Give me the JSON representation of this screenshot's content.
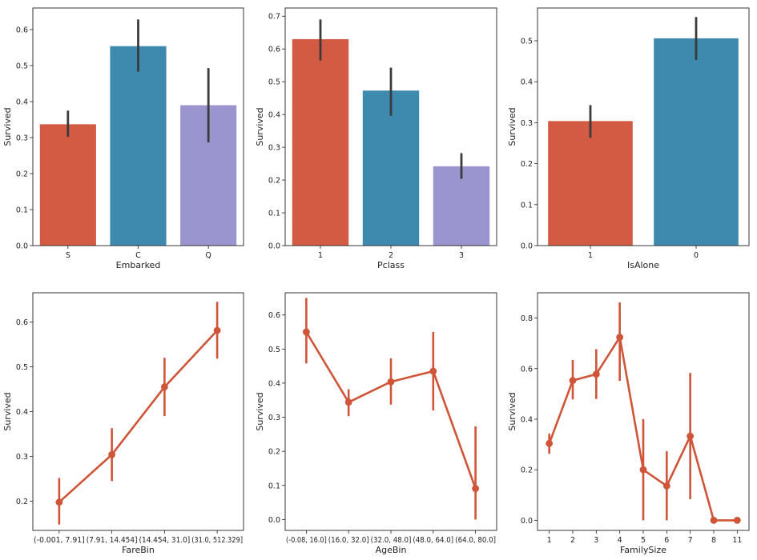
{
  "colors": {
    "red": "#d35a43",
    "blue": "#3e89ae",
    "purple": "#9a95ce",
    "errorbar": "#3b3b3b",
    "line": "#cf5438"
  },
  "chart_data": [
    {
      "type": "bar",
      "xlabel": "Embarked",
      "ylabel": "Survived",
      "categories": [
        "S",
        "C",
        "Q"
      ],
      "values": [
        0.337,
        0.554,
        0.39
      ],
      "ci": [
        [
          0.302,
          0.375
        ],
        [
          0.483,
          0.628
        ],
        [
          0.287,
          0.493
        ]
      ],
      "ylim": [
        0,
        0.66
      ],
      "yticks": [
        0.0,
        0.1,
        0.2,
        0.3,
        0.4,
        0.5,
        0.6
      ],
      "yticklabels": [
        "0.0",
        "0.1",
        "0.2",
        "0.3",
        "0.4",
        "0.5",
        "0.6"
      ],
      "bar_colors": [
        "red",
        "blue",
        "purple"
      ],
      "grid": false
    },
    {
      "type": "bar",
      "xlabel": "Pclass",
      "ylabel": "Survived",
      "categories": [
        "1",
        "2",
        "3"
      ],
      "values": [
        0.63,
        0.473,
        0.242
      ],
      "ci": [
        [
          0.565,
          0.69
        ],
        [
          0.396,
          0.543
        ],
        [
          0.204,
          0.282
        ]
      ],
      "ylim": [
        0,
        0.725
      ],
      "yticks": [
        0.0,
        0.1,
        0.2,
        0.3,
        0.4,
        0.5,
        0.6,
        0.7
      ],
      "yticklabels": [
        "0.0",
        "0.1",
        "0.2",
        "0.3",
        "0.4",
        "0.5",
        "0.6",
        "0.7"
      ],
      "bar_colors": [
        "red",
        "blue",
        "purple"
      ],
      "grid": false
    },
    {
      "type": "bar",
      "xlabel": "IsAlone",
      "ylabel": "Survived",
      "categories": [
        "1",
        "0"
      ],
      "values": [
        0.304,
        0.506
      ],
      "ci": [
        [
          0.263,
          0.343
        ],
        [
          0.453,
          0.558
        ]
      ],
      "ylim": [
        0,
        0.58
      ],
      "yticks": [
        0.0,
        0.1,
        0.2,
        0.3,
        0.4,
        0.5
      ],
      "yticklabels": [
        "0.0",
        "0.1",
        "0.2",
        "0.3",
        "0.4",
        "0.5"
      ],
      "bar_colors": [
        "red",
        "blue"
      ],
      "grid": false
    },
    {
      "type": "line",
      "xlabel": "FareBin",
      "ylabel": "Survived",
      "categories": [
        "(-0.001, 7.91]",
        "(7.91, 14.454]",
        "(14.454, 31.0]",
        "(31.0, 512.329]"
      ],
      "values": [
        0.198,
        0.304,
        0.455,
        0.581
      ],
      "ci": [
        [
          0.148,
          0.252
        ],
        [
          0.245,
          0.363
        ],
        [
          0.39,
          0.52
        ],
        [
          0.518,
          0.645
        ]
      ],
      "ylim": [
        0.135,
        0.665
      ],
      "yticks": [
        0.2,
        0.3,
        0.4,
        0.5,
        0.6
      ],
      "yticklabels": [
        "0.2",
        "0.3",
        "0.4",
        "0.5",
        "0.6"
      ],
      "grid": false
    },
    {
      "type": "line",
      "xlabel": "AgeBin",
      "ylabel": "Survived",
      "categories": [
        "(-0.08, 16.0]",
        "(16.0, 32.0]",
        "(32.0, 48.0]",
        "(48.0, 64.0]",
        "(64.0, 80.0]"
      ],
      "values": [
        0.55,
        0.344,
        0.404,
        0.435,
        0.091
      ],
      "ci": [
        [
          0.458,
          0.65
        ],
        [
          0.303,
          0.382
        ],
        [
          0.337,
          0.473
        ],
        [
          0.32,
          0.55
        ],
        [
          0.0,
          0.273
        ]
      ],
      "ylim": [
        -0.032,
        0.665
      ],
      "yticks": [
        0.0,
        0.1,
        0.2,
        0.3,
        0.4,
        0.5,
        0.6
      ],
      "yticklabels": [
        "0.0",
        "0.1",
        "0.2",
        "0.3",
        "0.4",
        "0.5",
        "0.6"
      ],
      "grid": false
    },
    {
      "type": "line",
      "xlabel": "FamilySize",
      "ylabel": "Survived",
      "categories": [
        "1",
        "2",
        "3",
        "4",
        "5",
        "6",
        "7",
        "8",
        "11"
      ],
      "values": [
        0.304,
        0.553,
        0.578,
        0.724,
        0.2,
        0.136,
        0.333,
        0.0,
        0.0
      ],
      "ci": [
        [
          0.263,
          0.343
        ],
        [
          0.478,
          0.634
        ],
        [
          0.48,
          0.677
        ],
        [
          0.552,
          0.862
        ],
        [
          0.0,
          0.4
        ],
        [
          0.0,
          0.273
        ],
        [
          0.083,
          0.583
        ],
        [
          0.0,
          0.0
        ],
        [
          0.0,
          0.0
        ]
      ],
      "ylim": [
        -0.04,
        0.9
      ],
      "yticks": [
        0.0,
        0.2,
        0.4,
        0.6,
        0.8
      ],
      "yticklabels": [
        "0.0",
        "0.2",
        "0.4",
        "0.6",
        "0.8"
      ],
      "grid": false
    }
  ]
}
